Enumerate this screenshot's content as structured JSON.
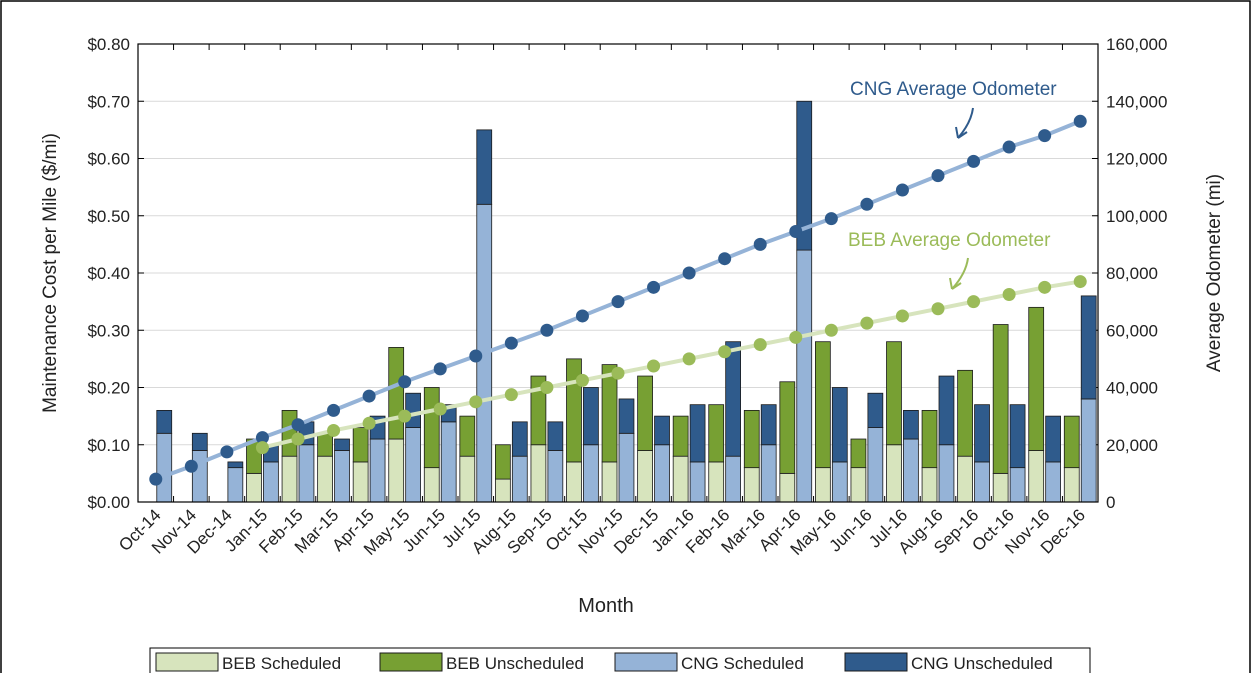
{
  "chart_data": {
    "type": "bar",
    "x_label": "Month",
    "y_label": "Maintenance Cost per Mile ($/mi)",
    "y2_label": "Average Odometer (mi)",
    "categories": [
      "Oct-14",
      "Nov-14",
      "Dec-14",
      "Jan-15",
      "Feb-15",
      "Mar-15",
      "Apr-15",
      "May-15",
      "Jun-15",
      "Jul-15",
      "Aug-15",
      "Sep-15",
      "Oct-15",
      "Nov-15",
      "Dec-15",
      "Jan-16",
      "Feb-16",
      "Mar-16",
      "Apr-16",
      "May-16",
      "Jun-16",
      "Jul-16",
      "Aug-16",
      "Sep-16",
      "Oct-16",
      "Nov-16",
      "Dec-16"
    ],
    "series": [
      {
        "name": "BEB Scheduled",
        "type": "bar",
        "color": "#d7e4bd",
        "values": [
          null,
          null,
          null,
          0.05,
          0.08,
          0.08,
          0.07,
          0.11,
          0.06,
          0.08,
          0.04,
          0.1,
          0.07,
          0.07,
          0.09,
          0.08,
          0.07,
          0.06,
          0.05,
          0.06,
          0.06,
          0.1,
          0.06,
          0.08,
          0.05,
          0.09,
          0.06
        ]
      },
      {
        "name": "BEB Unscheduled",
        "type": "bar",
        "color": "#77a033",
        "values": [
          null,
          null,
          null,
          0.06,
          0.08,
          0.04,
          0.06,
          0.16,
          0.14,
          0.07,
          0.06,
          0.12,
          0.18,
          0.17,
          0.13,
          0.07,
          0.1,
          0.1,
          0.16,
          0.22,
          0.05,
          0.18,
          0.1,
          0.15,
          0.26,
          0.25,
          0.09
        ]
      },
      {
        "name": "CNG Scheduled",
        "type": "bar",
        "color": "#95b3d7",
        "values": [
          0.12,
          0.09,
          0.06,
          0.07,
          0.1,
          0.09,
          0.11,
          0.13,
          0.14,
          0.52,
          0.08,
          0.09,
          0.1,
          0.12,
          0.1,
          0.07,
          0.08,
          0.1,
          0.44,
          0.07,
          0.13,
          0.11,
          0.1,
          0.07,
          0.06,
          0.07,
          0.18
        ]
      },
      {
        "name": "CNG Unscheduled",
        "type": "bar",
        "color": "#2f5b8c",
        "values": [
          0.04,
          0.03,
          0.01,
          0.03,
          0.04,
          0.02,
          0.04,
          0.06,
          0.03,
          0.13,
          0.06,
          0.05,
          0.1,
          0.06,
          0.05,
          0.1,
          0.2,
          0.07,
          0.26,
          0.13,
          0.06,
          0.05,
          0.12,
          0.1,
          0.11,
          0.08,
          0.18
        ]
      },
      {
        "name": "CNG Average Odometer",
        "type": "line",
        "axis": "y2",
        "color": "#95b3d7",
        "marker_color": "#2f5b8c",
        "values": [
          8000,
          12500,
          17500,
          22500,
          27000,
          32000,
          37000,
          42000,
          46500,
          51000,
          55500,
          60000,
          65000,
          70000,
          75000,
          80000,
          85000,
          90000,
          94500,
          99000,
          104000,
          109000,
          114000,
          119000,
          124000,
          128000,
          133000
        ]
      },
      {
        "name": "BEB Average Odometer",
        "type": "line",
        "axis": "y2",
        "color": "#d7e4bd",
        "marker_color": "#9bbb59",
        "values": [
          null,
          null,
          null,
          19000,
          22000,
          25000,
          27500,
          30000,
          32500,
          35000,
          37500,
          40000,
          42500,
          45000,
          47500,
          50000,
          52500,
          55000,
          57500,
          60000,
          62500,
          65000,
          67500,
          70000,
          72500,
          75000,
          77000
        ]
      }
    ],
    "ylim": [
      0,
      0.8
    ],
    "yticks": [
      {
        "value": 0,
        "label": "$0.00"
      },
      {
        "value": 0.1,
        "label": "$0.10"
      },
      {
        "value": 0.2,
        "label": "$0.20"
      },
      {
        "value": 0.3,
        "label": "$0.30"
      },
      {
        "value": 0.4,
        "label": "$0.40"
      },
      {
        "value": 0.5,
        "label": "$0.50"
      },
      {
        "value": 0.6,
        "label": "$0.60"
      },
      {
        "value": 0.7,
        "label": "$0.70"
      },
      {
        "value": 0.8,
        "label": "$0.80"
      }
    ],
    "y2lim": [
      0,
      160000
    ],
    "y2ticks": [
      0,
      {
        "value": 20000,
        "label": "20,000"
      },
      {
        "value": 40000,
        "label": "40,000"
      },
      {
        "value": 60000,
        "label": "60,000"
      },
      {
        "value": 80000,
        "label": "80,000"
      },
      {
        "value": 100000,
        "label": "100,000"
      },
      {
        "value": 120000,
        "label": "120,000"
      },
      {
        "value": 140000,
        "label": "140,000"
      },
      {
        "value": 160000,
        "label": "160,000"
      }
    ],
    "grid": true,
    "legend": "bottom"
  }
}
